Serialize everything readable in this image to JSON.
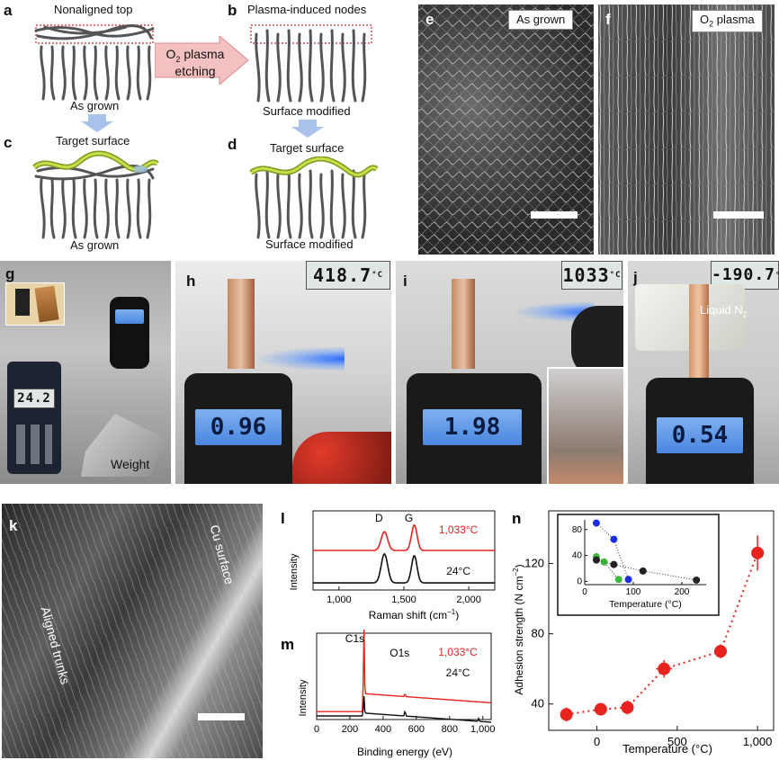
{
  "panels": {
    "a": {
      "label": "a",
      "top_caption": "Nonaligned top",
      "bottom_caption": "As grown"
    },
    "arrow": {
      "line1": "O",
      "line1_sub": "2",
      "line1_rest": " plasma",
      "line2": "etching"
    },
    "b": {
      "label": "b",
      "top_caption": "Plasma-induced nodes",
      "bottom_caption": "Surface modified"
    },
    "c": {
      "label": "c",
      "top_caption": "Target surface",
      "bottom_caption": "As grown"
    },
    "d": {
      "label": "d",
      "top_caption": "Target surface",
      "bottom_caption": "Surface modified"
    },
    "e": {
      "label": "e",
      "caption": "As grown"
    },
    "f": {
      "label": "f",
      "caption_main": "O",
      "caption_sub": "2",
      "caption_rest": " plasma"
    },
    "g": {
      "label": "g",
      "thermometer": "24.2",
      "weight_label": "Weight"
    },
    "h": {
      "label": "h",
      "temperature": "418.7",
      "temp_unit": "°C",
      "scale_reading": "0.96"
    },
    "i": {
      "label": "i",
      "temperature": "1033",
      "temp_unit": "°C",
      "scale_reading": "1.98"
    },
    "j": {
      "label": "j",
      "temperature": "-190.7",
      "temp_unit": "°C",
      "scale_reading": "0.54",
      "caption_main": "Liquid N",
      "caption_sub": "2"
    },
    "k": {
      "label": "k",
      "caption_trunks": "Aligned trunks",
      "caption_cu": "Cu surface"
    },
    "l": {
      "label": "l"
    },
    "m": {
      "label": "m"
    },
    "n": {
      "label": "n"
    }
  },
  "chart_data": [
    {
      "id": "l",
      "type": "line",
      "xlabel": "Raman shift (cm−1)",
      "xlabel_main": "Raman shift (cm",
      "xlabel_sup": "−1",
      "xlabel_end": ")",
      "ylabel": "Intensity",
      "xlim": [
        800,
        2200
      ],
      "xticks": [
        1000,
        1500,
        2000
      ],
      "xtick_labels": [
        "1,000",
        "1,500",
        "2,000"
      ],
      "peak_labels": [
        {
          "text": "D",
          "x": 1350
        },
        {
          "text": "G",
          "x": 1580
        }
      ],
      "series": [
        {
          "name": "1,033°C",
          "color": "#e8231e",
          "offset": 1.0,
          "peaks": [
            {
              "x": 1350,
              "h": 0.55,
              "w": 35
            },
            {
              "x": 1580,
              "h": 0.75,
              "w": 30
            }
          ]
        },
        {
          "name": "24°C",
          "color": "#111111",
          "offset": 0.0,
          "peaks": [
            {
              "x": 1350,
              "h": 0.85,
              "w": 35
            },
            {
              "x": 1580,
              "h": 0.8,
              "w": 30
            }
          ]
        }
      ]
    },
    {
      "id": "m",
      "type": "line",
      "xlabel": "Binding energy (eV)",
      "ylabel": "Intensity",
      "xlim": [
        0,
        1050
      ],
      "xticks": [
        0,
        200,
        400,
        600,
        800,
        1000
      ],
      "xtick_labels": [
        "0",
        "200",
        "400",
        "600",
        "800",
        "1,000"
      ],
      "peak_labels": [
        {
          "text": "C1s",
          "x": 284
        },
        {
          "text": "O1s",
          "x": 532
        }
      ],
      "series": [
        {
          "name": "1,033°C",
          "color": "#e8231e",
          "base_low": 0.12,
          "base_high": 0.62,
          "edge": 284,
          "peaks": [
            {
              "x": 284,
              "h": 2.0
            },
            {
              "x": 532,
              "h": 0.08
            }
          ]
        },
        {
          "name": "24°C",
          "color": "#111111",
          "base_low": 0.0,
          "base_high": 0.08,
          "edge": 284,
          "peaks": [
            {
              "x": 284,
              "h": 0.5
            },
            {
              "x": 532,
              "h": 0.15
            },
            {
              "x": 975,
              "h": 0.08
            }
          ]
        }
      ]
    },
    {
      "id": "n",
      "type": "scatter",
      "xlabel": "Temperature (°C)",
      "ylabel": "Adhesion strength (N cm−2)",
      "ylabel_main": "Adhesion strength (N cm",
      "ylabel_sup": "−2",
      "ylabel_end": ")",
      "xlim": [
        -300,
        1100
      ],
      "ylim": [
        25,
        150
      ],
      "xticks": [
        0,
        500,
        1000
      ],
      "xtick_labels": [
        "0",
        "500",
        "1,000"
      ],
      "yticks": [
        40,
        80,
        120
      ],
      "color": "#e8231e",
      "points": [
        {
          "x": -190,
          "y": 34,
          "xerr": 25,
          "yerr": 4
        },
        {
          "x": 24,
          "y": 37,
          "xerr": 15,
          "yerr": 2
        },
        {
          "x": 190,
          "y": 38,
          "xerr": 30,
          "yerr": 4
        },
        {
          "x": 418,
          "y": 60,
          "xerr": 50,
          "yerr": 5
        },
        {
          "x": 770,
          "y": 70,
          "xerr": 30,
          "yerr": 4
        },
        {
          "x": 1000,
          "y": 126,
          "xerr": 25,
          "yerr": 10
        }
      ],
      "inset": {
        "xlabel": "Temperature (°C)",
        "xlim": [
          0,
          250
        ],
        "ylim": [
          -5,
          95
        ],
        "xticks": [
          0,
          100,
          200
        ],
        "yticks": [
          0,
          40,
          80
        ],
        "series": [
          {
            "color": "#1a2ee0",
            "points": [
              [
                24,
                90
              ],
              [
                60,
                65
              ],
              [
                90,
                3
              ]
            ]
          },
          {
            "color": "#3dbb3a",
            "points": [
              [
                24,
                38
              ],
              [
                40,
                30
              ],
              [
                70,
                3
              ]
            ]
          },
          {
            "color": "#222222",
            "points": [
              [
                24,
                33
              ],
              [
                60,
                26
              ],
              [
                120,
                16
              ],
              [
                230,
                2
              ]
            ]
          }
        ]
      }
    }
  ]
}
